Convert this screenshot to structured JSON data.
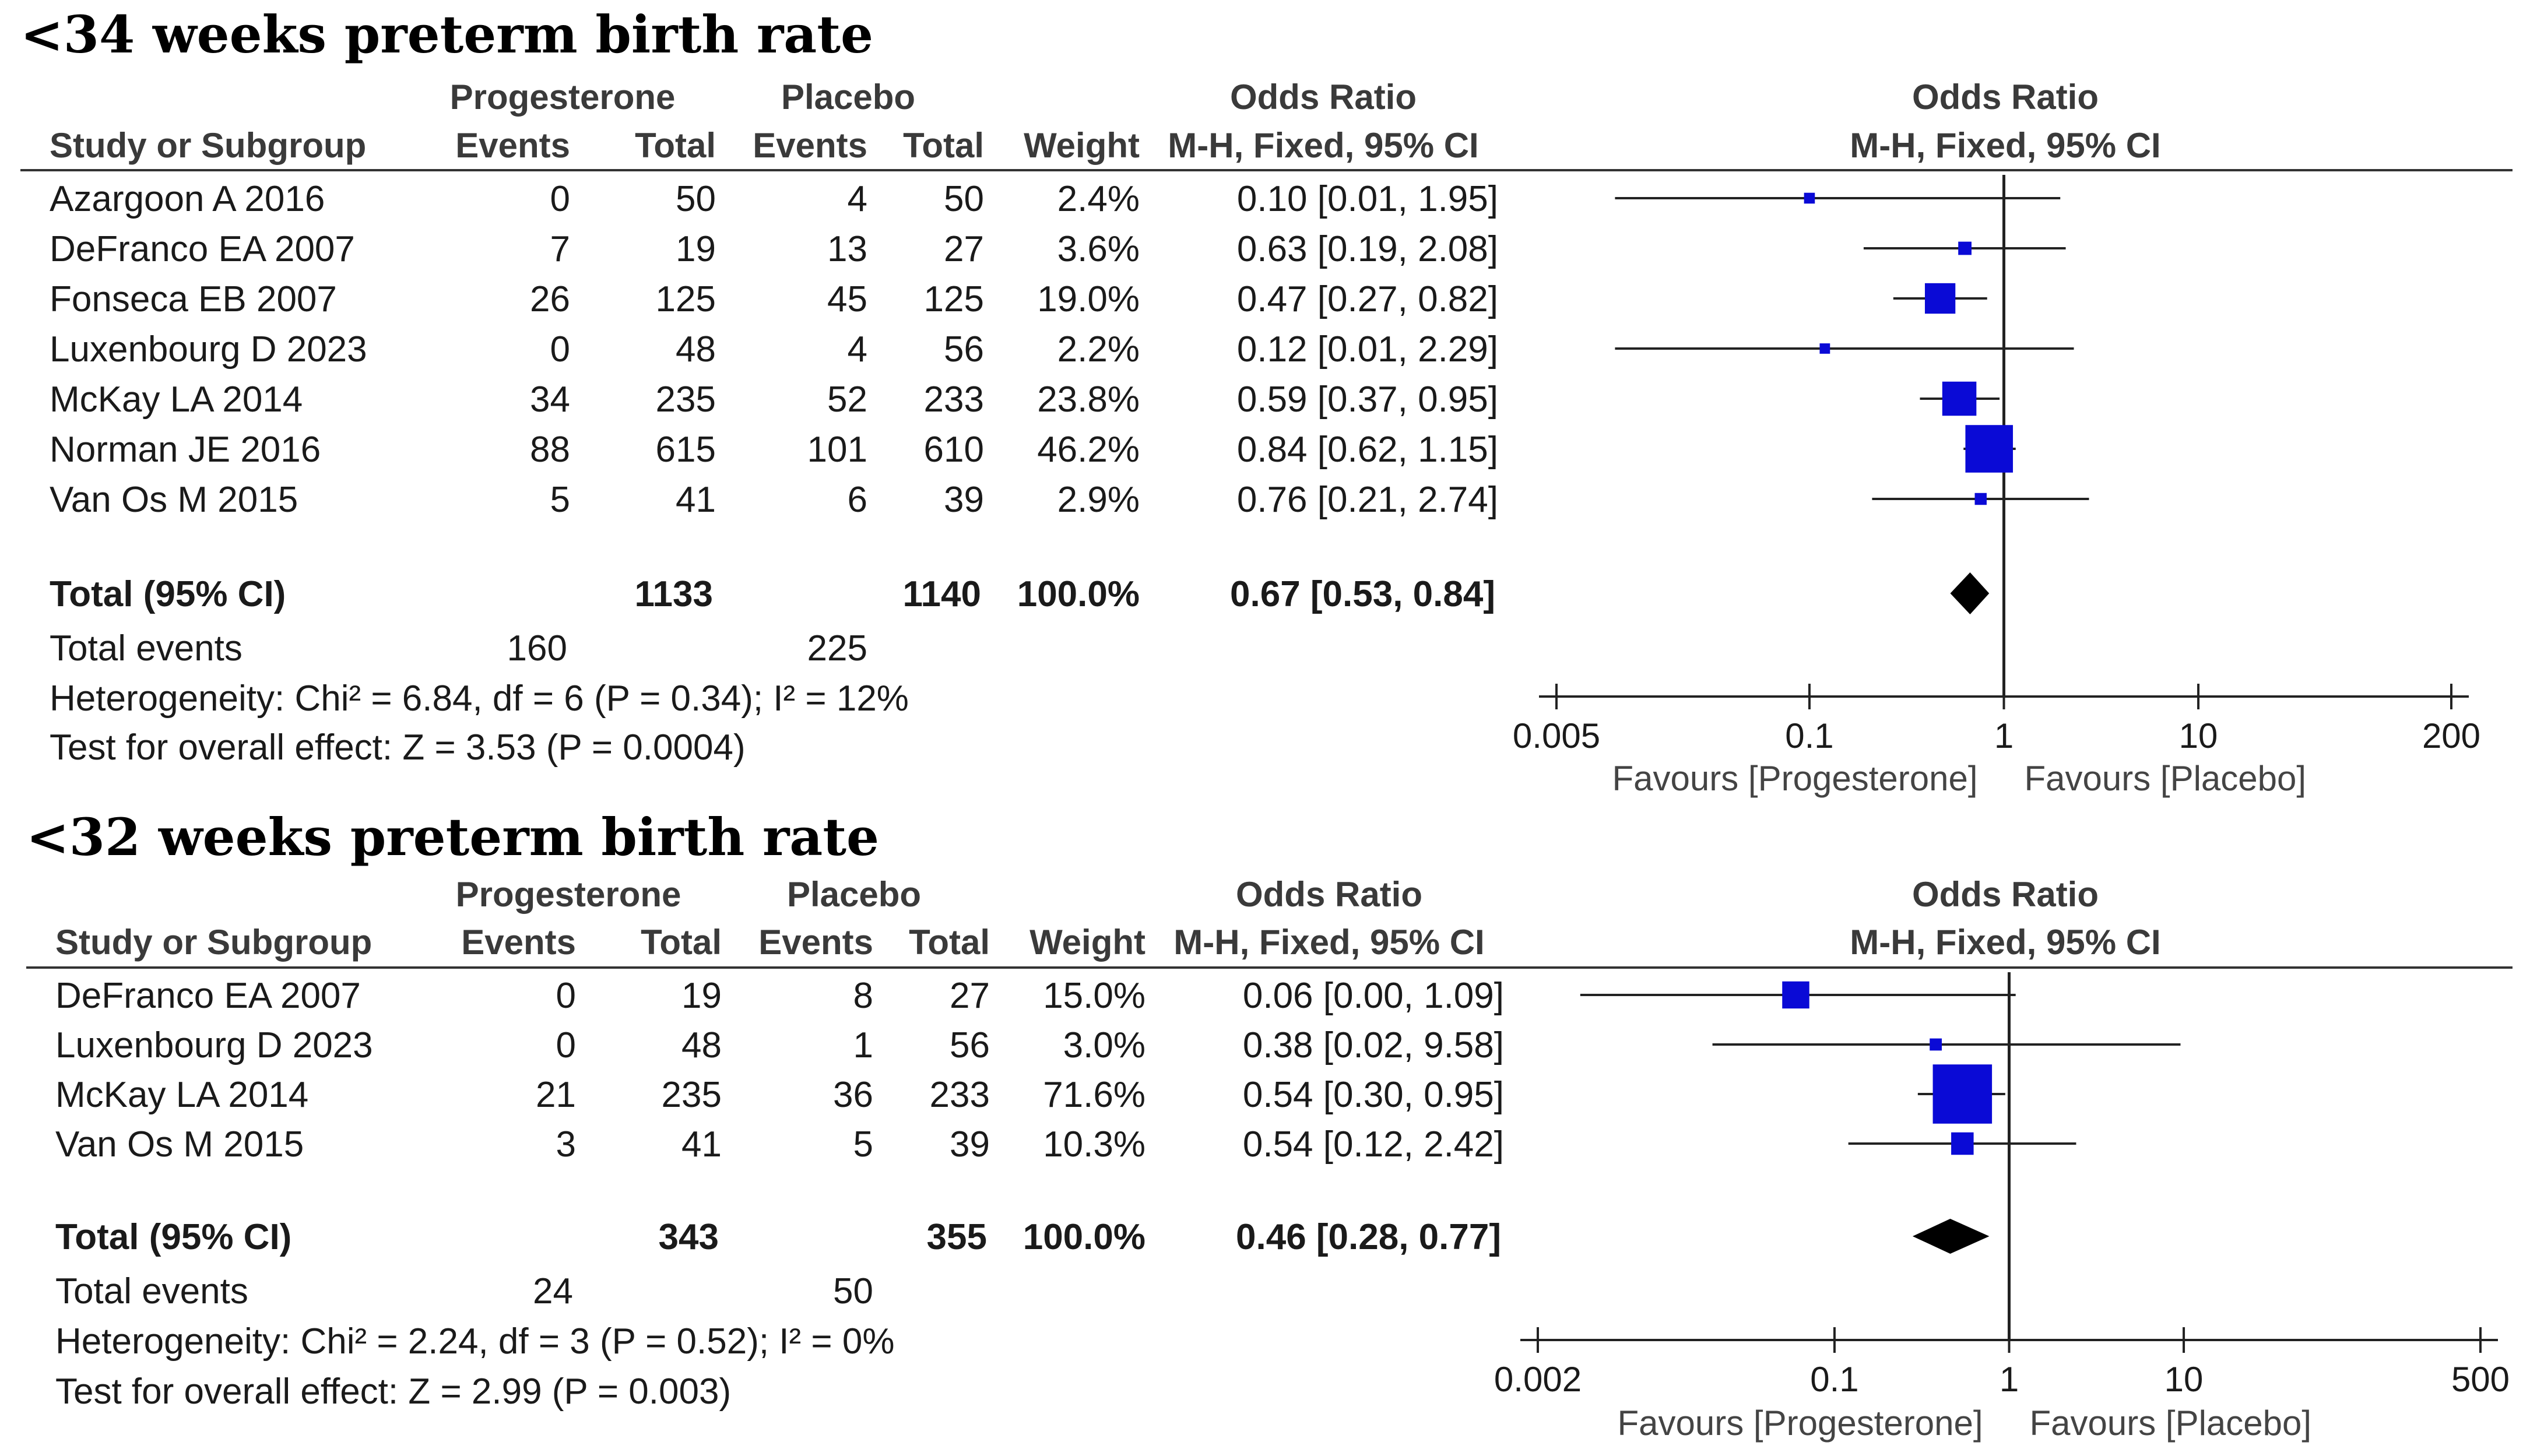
{
  "colors": {
    "square": "#0a0ad6",
    "diamond": "#000000",
    "text": "#1a1a1a",
    "header": "#3a3a3a"
  },
  "chart_data": [
    {
      "type": "forest",
      "title": "<34 weeks preterm birth rate",
      "headers": {
        "group_treat": "Progesterone",
        "group_ctrl": "Placebo",
        "or_group": "Odds Ratio",
        "or_method": "M-H, Fixed, 95% CI",
        "plot_title": "Odds Ratio",
        "plot_method": "M-H, Fixed, 95% CI",
        "study": "Study or Subgroup",
        "events1": "Events",
        "total1": "Total",
        "events2": "Events",
        "total2": "Total",
        "weight": "Weight"
      },
      "studies": [
        {
          "name": "Azargoon A 2016",
          "e1": "0",
          "n1": "50",
          "e2": "4",
          "n2": "50",
          "weight": "2.4%",
          "ci_text": "0.10 [0.01, 1.95]",
          "or": 0.1,
          "lo": 0.01,
          "hi": 1.95,
          "w": 2.4
        },
        {
          "name": "DeFranco EA 2007",
          "e1": "7",
          "n1": "19",
          "e2": "13",
          "n2": "27",
          "weight": "3.6%",
          "ci_text": "0.63 [0.19, 2.08]",
          "or": 0.63,
          "lo": 0.19,
          "hi": 2.08,
          "w": 3.6
        },
        {
          "name": "Fonseca EB 2007",
          "e1": "26",
          "n1": "125",
          "e2": "45",
          "n2": "125",
          "weight": "19.0%",
          "ci_text": "0.47 [0.27, 0.82]",
          "or": 0.47,
          "lo": 0.27,
          "hi": 0.82,
          "w": 19.0
        },
        {
          "name": "Luxenbourg D 2023",
          "e1": "0",
          "n1": "48",
          "e2": "4",
          "n2": "56",
          "weight": "2.2%",
          "ci_text": "0.12 [0.01, 2.29]",
          "or": 0.12,
          "lo": 0.01,
          "hi": 2.29,
          "w": 2.2
        },
        {
          "name": "McKay LA 2014",
          "e1": "34",
          "n1": "235",
          "e2": "52",
          "n2": "233",
          "weight": "23.8%",
          "ci_text": "0.59 [0.37, 0.95]",
          "or": 0.59,
          "lo": 0.37,
          "hi": 0.95,
          "w": 23.8
        },
        {
          "name": "Norman JE 2016",
          "e1": "88",
          "n1": "615",
          "e2": "101",
          "n2": "610",
          "weight": "46.2%",
          "ci_text": "0.84 [0.62, 1.15]",
          "or": 0.84,
          "lo": 0.62,
          "hi": 1.15,
          "w": 46.2
        },
        {
          "name": "Van Os M 2015",
          "e1": "5",
          "n1": "41",
          "e2": "6",
          "n2": "39",
          "weight": "2.9%",
          "ci_text": "0.76 [0.21, 2.74]",
          "or": 0.76,
          "lo": 0.21,
          "hi": 2.74,
          "w": 2.9
        }
      ],
      "total": {
        "label": "Total (95% CI)",
        "n1": "1133",
        "n2": "1140",
        "weight": "100.0%",
        "ci_text": "0.67 [0.53, 0.84]",
        "or": 0.67,
        "lo": 0.53,
        "hi": 0.84
      },
      "total_events": {
        "label": "Total events",
        "e1": "160",
        "e2": "225"
      },
      "heterogeneity": "Heterogeneity: Chi² = 6.84, df = 6 (P = 0.34); I² = 12%",
      "overall_effect": "Test for overall effect: Z = 3.53 (P = 0.0004)",
      "axis": {
        "ticks": [
          0.005,
          0.1,
          1,
          10,
          200
        ],
        "tick_labels": [
          "0.005",
          "0.1",
          "1",
          "10",
          "200"
        ],
        "range": [
          0.005,
          200
        ],
        "scale": "log"
      },
      "favours_left": "Favours [Progesterone]",
      "favours_right": "Favours [Placebo]"
    },
    {
      "type": "forest",
      "title": "<32 weeks preterm birth rate",
      "headers": {
        "group_treat": "Progesterone",
        "group_ctrl": "Placebo",
        "or_group": "Odds Ratio",
        "or_method": "M-H, Fixed, 95% CI",
        "plot_title": "Odds Ratio",
        "plot_method": "M-H, Fixed, 95% CI",
        "study": "Study or Subgroup",
        "events1": "Events",
        "total1": "Total",
        "events2": "Events",
        "total2": "Total",
        "weight": "Weight"
      },
      "studies": [
        {
          "name": "DeFranco EA 2007",
          "e1": "0",
          "n1": "19",
          "e2": "8",
          "n2": "27",
          "weight": "15.0%",
          "ci_text": "0.06 [0.00, 1.09]",
          "or": 0.06,
          "lo": 0.0035,
          "hi": 1.09,
          "w": 15.0
        },
        {
          "name": "Luxenbourg D 2023",
          "e1": "0",
          "n1": "48",
          "e2": "1",
          "n2": "56",
          "weight": "3.0%",
          "ci_text": "0.38 [0.02, 9.58]",
          "or": 0.38,
          "lo": 0.02,
          "hi": 9.58,
          "w": 3.0
        },
        {
          "name": "McKay LA 2014",
          "e1": "21",
          "n1": "235",
          "e2": "36",
          "n2": "233",
          "weight": "71.6%",
          "ci_text": "0.54 [0.30, 0.95]",
          "or": 0.54,
          "lo": 0.3,
          "hi": 0.95,
          "w": 71.6
        },
        {
          "name": "Van Os M 2015",
          "e1": "3",
          "n1": "41",
          "e2": "5",
          "n2": "39",
          "weight": "10.3%",
          "ci_text": "0.54 [0.12, 2.42]",
          "or": 0.54,
          "lo": 0.12,
          "hi": 2.42,
          "w": 10.3
        }
      ],
      "total": {
        "label": "Total (95% CI)",
        "n1": "343",
        "n2": "355",
        "weight": "100.0%",
        "ci_text": "0.46 [0.28, 0.77]",
        "or": 0.46,
        "lo": 0.28,
        "hi": 0.77
      },
      "total_events": {
        "label": "Total events",
        "e1": "24",
        "e2": "50"
      },
      "heterogeneity": "Heterogeneity: Chi² = 2.24, df = 3 (P = 0.52); I² = 0%",
      "overall_effect": "Test for overall effect: Z = 2.99 (P = 0.003)",
      "axis": {
        "ticks": [
          0.002,
          0.1,
          1,
          10,
          500
        ],
        "tick_labels": [
          "0.002",
          "0.1",
          "1",
          "10",
          "500"
        ],
        "range": [
          0.002,
          500
        ],
        "scale": "log"
      },
      "favours_left": "Favours [Progesterone]",
      "favours_right": "Favours [Placebo]"
    }
  ]
}
